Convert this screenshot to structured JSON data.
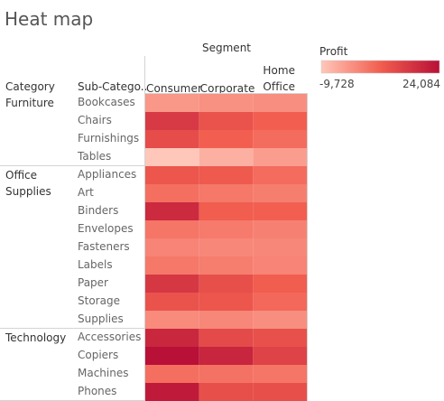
{
  "chart_data": {
    "type": "heatmap",
    "title": "Heat map",
    "column_header": "Segment",
    "row_headers": [
      "Category",
      "Sub-Catego.."
    ],
    "segments": [
      "Consumer",
      "Corporate",
      "Home Office"
    ],
    "segment_labels": [
      [
        "Consumer"
      ],
      [
        "Corporate"
      ],
      [
        "Home",
        "Office"
      ]
    ],
    "categories": [
      {
        "name": "Furniture",
        "name_lines": [
          "Furniture"
        ],
        "subcategories": [
          {
            "name": "Bookcases",
            "values": [
              -2000,
              -1000,
              -500
            ]
          },
          {
            "name": "Chairs",
            "values": [
              15000,
              9500,
              7000
            ]
          },
          {
            "name": "Furnishings",
            "values": [
              11000,
              7000,
              5000
            ]
          },
          {
            "name": "Tables",
            "values": [
              -9728,
              -6000,
              -3000
            ]
          }
        ]
      },
      {
        "name": "Office Supplies",
        "name_lines": [
          "Office",
          "Supplies"
        ],
        "subcategories": [
          {
            "name": "Appliances",
            "values": [
              9000,
              8000,
              5000
            ]
          },
          {
            "name": "Art",
            "values": [
              4500,
              3000,
              2000
            ]
          },
          {
            "name": "Binders",
            "values": [
              18500,
              7500,
              7000
            ]
          },
          {
            "name": "Envelopes",
            "values": [
              3500,
              2500,
              1500
            ]
          },
          {
            "name": "Fasteners",
            "values": [
              1000,
              500,
              500
            ]
          },
          {
            "name": "Labels",
            "values": [
              3000,
              2000,
              1000
            ]
          },
          {
            "name": "Paper",
            "values": [
              15500,
              10500,
              7500
            ]
          },
          {
            "name": "Storage",
            "values": [
              9500,
              9000,
              5500
            ]
          },
          {
            "name": "Supplies",
            "values": [
              0,
              500,
              -500
            ]
          }
        ]
      },
      {
        "name": "Technology",
        "name_lines": [
          "Technology"
        ],
        "subcategories": [
          {
            "name": "Accessories",
            "values": [
              19000,
              11500,
              10000
            ]
          },
          {
            "name": "Copiers",
            "values": [
              24084,
              19500,
              13000
            ]
          },
          {
            "name": "Machines",
            "values": [
              4500,
              4000,
              3500
            ]
          },
          {
            "name": "Phones",
            "values": [
              22000,
              10500,
              10500
            ]
          }
        ]
      }
    ],
    "legend": {
      "title": "Profit",
      "min_label": "-9,728",
      "max_label": "24,084",
      "min": -9728,
      "max": 24084,
      "color_low": "#ffc7b9",
      "color_mid": "#f25e4f",
      "color_high": "#b81037"
    }
  }
}
